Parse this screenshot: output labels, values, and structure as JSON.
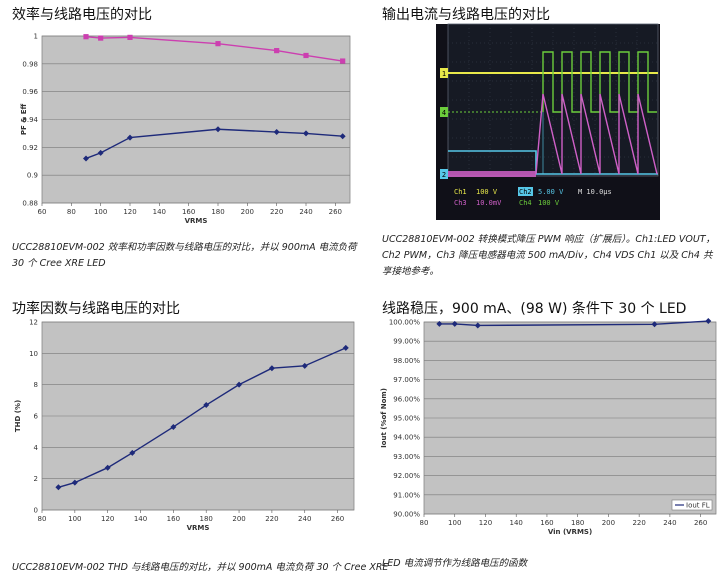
{
  "charts_meta": {
    "efficiency": {
      "title": "效率与线路电压的对比",
      "caption": "UCC28810EVM-002 效率和功率因数与线路电压的对比，并以 900mA 电流负荷 30 个 Cree XRE LED"
    },
    "scope": {
      "title": "输出电流与线路电压的对比",
      "caption": "UCC28810EVM-002 转换模式降压 PWM 响应（扩展后）。Ch1:LED VOUT，Ch2 PWM，Ch3 降压电感器电流 500 mA/Div，Ch4 VDS Ch1 以及 Ch4 共享接地参考。",
      "labels": {
        "ch1": "Ch1",
        "ch1v": "100 V",
        "ch2": "Ch2",
        "ch2v": "5.00 V",
        "ch3": "Ch3",
        "ch3v": "10.0mV",
        "ch4": "Ch4",
        "ch4v": "100 V",
        "time": "M 10.0µs",
        "m1": "1",
        "m4": "4",
        "m2": "2"
      },
      "colors": {
        "ch1": "#e8e84a",
        "ch2": "#57c8e8",
        "ch3": "#d060c8",
        "ch4": "#6ccd3c"
      }
    },
    "thd": {
      "title": "功率因数与线路电压的对比",
      "caption": "UCC28810EVM-002 THD 与线路电压的对比，并以 900mA 电流负荷 30 个 Cree XRE"
    },
    "regulation": {
      "title": "线路稳压，900 mA、(98 W) 条件下 30 个 LED",
      "caption": "LED 电流调节作为线路电压的函数"
    }
  },
  "chart_data": [
    {
      "type": "line",
      "title": "",
      "xlabel": "VRMS",
      "ylabel": "PF & Eff",
      "xlim": [
        60,
        270
      ],
      "ylim": [
        0.88,
        1.0
      ],
      "xticks": [
        60,
        80,
        100,
        120,
        140,
        160,
        180,
        200,
        220,
        240,
        260
      ],
      "yticks": [
        "0.88",
        "0.9",
        "0.92",
        "0.94",
        "0.96",
        "0.98",
        "1"
      ],
      "series": [
        {
          "name": "",
          "color": "#cc3fb0",
          "marker": "square",
          "x": [
            90,
            100,
            120,
            180,
            220,
            240,
            265
          ],
          "y": [
            0.9995,
            0.9985,
            0.999,
            0.9945,
            0.9895,
            0.986,
            0.982
          ]
        },
        {
          "name": "",
          "color": "#1e2a7a",
          "marker": "diamond",
          "x": [
            90,
            100,
            120,
            180,
            220,
            240,
            265
          ],
          "y": [
            0.912,
            0.916,
            0.927,
            0.933,
            0.931,
            0.93,
            0.928
          ]
        }
      ],
      "grid": true
    },
    {
      "type": "line",
      "title": "",
      "xlabel": "VRMS",
      "ylabel": "THD (%)",
      "xlim": [
        80,
        270
      ],
      "ylim": [
        0,
        12
      ],
      "xticks": [
        80,
        100,
        120,
        140,
        160,
        180,
        200,
        220,
        240,
        260
      ],
      "yticks": [
        "0",
        "2",
        "4",
        "6",
        "8",
        "10",
        "12"
      ],
      "series": [
        {
          "name": "",
          "color": "#1e2a7a",
          "marker": "diamond",
          "x": [
            90,
            100,
            120,
            135,
            160,
            180,
            200,
            220,
            240,
            265
          ],
          "y": [
            1.45,
            1.75,
            2.7,
            3.65,
            5.3,
            6.7,
            8.0,
            9.05,
            9.2,
            10.35
          ]
        }
      ],
      "grid": true
    },
    {
      "type": "line",
      "title": "",
      "xlabel": "Vin (VRMS)",
      "ylabel": "Iout (%of Nom)",
      "xlim": [
        80,
        270
      ],
      "ylim": [
        90.0,
        100.0
      ],
      "xticks": [
        80,
        100,
        120,
        140,
        160,
        180,
        200,
        220,
        240,
        260
      ],
      "yticks": [
        "90.00%",
        "91.00%",
        "92.00%",
        "93.00%",
        "94.00%",
        "95.00%",
        "96.00%",
        "97.00%",
        "98.00%",
        "99.00%",
        "100.00%"
      ],
      "series": [
        {
          "name": "Iout FL",
          "color": "#1e2a7a",
          "marker": "diamond",
          "x": [
            90,
            100,
            115,
            230,
            265
          ],
          "y": [
            99.9,
            99.9,
            99.82,
            99.88,
            100.05
          ]
        }
      ],
      "legend": "bottom-right",
      "grid": true
    }
  ]
}
